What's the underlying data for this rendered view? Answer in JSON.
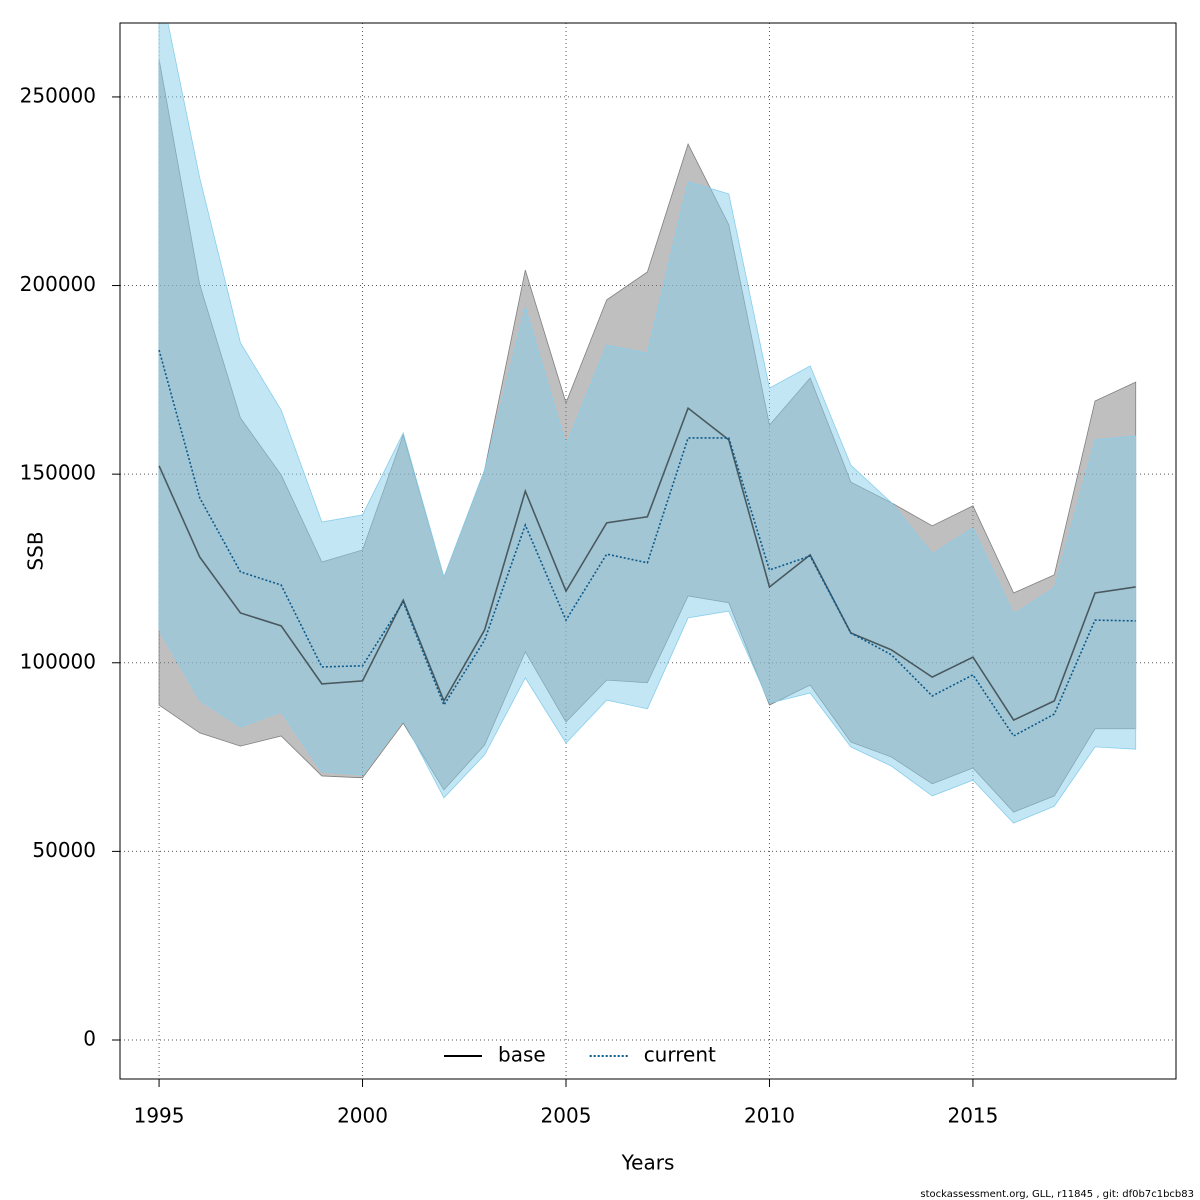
{
  "chart_data": {
    "type": "line",
    "x_label": "Years",
    "y_label": "SSB",
    "footnote": "stockassessment.org, GLL, r11845 , git: df0b7c1bcb83",
    "x": [
      1995,
      1996,
      1997,
      1998,
      1999,
      2000,
      2001,
      2002,
      2003,
      2004,
      2005,
      2006,
      2007,
      2008,
      2009,
      2010,
      2011,
      2012,
      2013,
      2014,
      2015,
      2016,
      2017,
      2018,
      2019
    ],
    "series": [
      {
        "name": "base",
        "color": "#000000",
        "band_color": "#808080",
        "values": [
          152200,
          128000,
          113200,
          109800,
          94400,
          95200,
          116600,
          89900,
          108700,
          145500,
          119000,
          137100,
          138700,
          167500,
          159100,
          120100,
          128600,
          107900,
          103400,
          96200,
          101500,
          84800,
          89900,
          118500,
          120100
        ],
        "upper": [
          260000,
          200200,
          164900,
          149800,
          126700,
          129900,
          160400,
          122700,
          151100,
          204100,
          168900,
          196200,
          203600,
          237500,
          216100,
          163000,
          175500,
          147900,
          142400,
          136300,
          141600,
          118500,
          123300,
          169400,
          174400
        ],
        "lower": [
          88800,
          81400,
          77900,
          80600,
          70000,
          69500,
          84000,
          66300,
          78200,
          102900,
          84300,
          95400,
          94700,
          117700,
          115900,
          88800,
          94100,
          79000,
          75000,
          67900,
          72100,
          60400,
          64700,
          82500,
          82500
        ]
      },
      {
        "name": "current",
        "color": "#0b5a8c",
        "band_color": "#87ceeb",
        "values": [
          182900,
          143700,
          124100,
          120600,
          98900,
          99200,
          116100,
          88800,
          106000,
          136500,
          111300,
          128800,
          126500,
          159600,
          159600,
          124600,
          128300,
          107900,
          102100,
          91200,
          96800,
          80600,
          86400,
          111300,
          111100
        ],
        "upper": [
          281000,
          228500,
          184800,
          167000,
          137300,
          139200,
          160900,
          122700,
          151100,
          194300,
          157700,
          184200,
          182100,
          227500,
          224300,
          172800,
          178700,
          152400,
          142400,
          128800,
          135700,
          112900,
          119800,
          159100,
          160100
        ],
        "lower": [
          108700,
          90100,
          83000,
          87000,
          71100,
          70300,
          84800,
          64200,
          75600,
          96000,
          78700,
          90100,
          87800,
          111900,
          113700,
          89300,
          92000,
          77700,
          72600,
          64700,
          68900,
          57500,
          62000,
          77700,
          77100
        ]
      }
    ],
    "xlim": [
      1994.04,
      2019.99
    ],
    "xticks": [
      1995,
      2000,
      2005,
      2010,
      2015
    ],
    "ylim": [
      -10340,
      269600
    ],
    "yticks": [
      0,
      50000,
      100000,
      150000,
      200000,
      250000
    ],
    "grid": true,
    "legend": "bottom"
  }
}
